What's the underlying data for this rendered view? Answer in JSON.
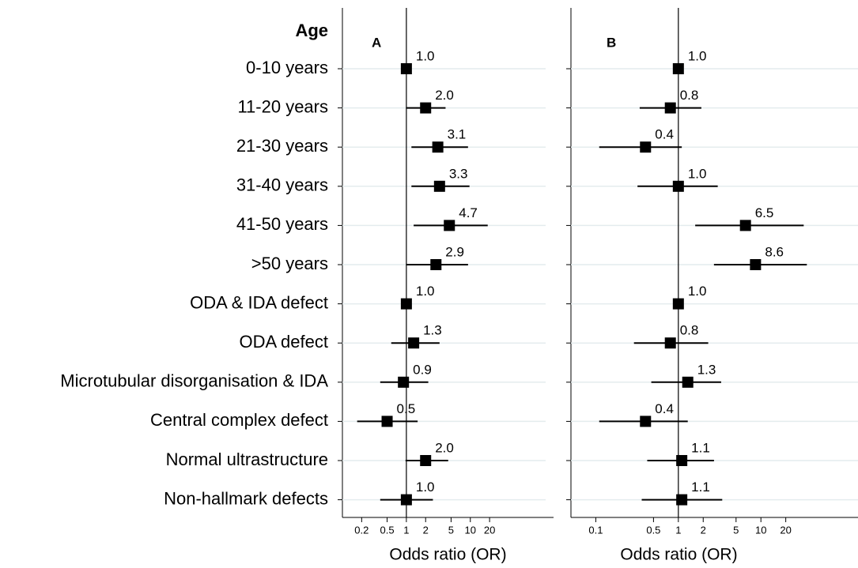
{
  "chart_data": [
    {
      "type": "forest",
      "title": "A",
      "row_header": "Age",
      "xlabel": "Odds ratio (OR)",
      "xscale": "log",
      "xlim": [
        0.1,
        200
      ],
      "xticks": [
        0.2,
        0.5,
        1,
        2,
        5,
        10,
        20
      ],
      "reference_line": 1,
      "grid": true,
      "color": "#000000",
      "categories": [
        "0-10 years",
        "11-20 years",
        "21-30 years",
        "31-40 years",
        "41-50 years",
        ">50 years",
        "ODA & IDA defect",
        "ODA defect",
        "Microtubular disorganisation & IDA",
        "Central complex defect",
        "Normal ultrastructure",
        "Non-hallmark defects"
      ],
      "values": [
        1,
        2,
        3.1,
        3.3,
        4.7,
        2.9,
        1,
        1.3,
        0.9,
        0.5,
        2,
        1
      ],
      "value_labels": [
        "1.0",
        "2.0",
        "3.1",
        "3.3",
        "4.7",
        "2.9",
        "1.0",
        "1.3",
        "0.9",
        "0.5",
        "2.0",
        "1.0"
      ],
      "lower": [
        null,
        1.0,
        1.2,
        1.2,
        1.3,
        1.0,
        null,
        0.58,
        0.39,
        0.17,
        0.97,
        0.39
      ],
      "upper": [
        null,
        4.1,
        9.2,
        9.7,
        18.7,
        9.2,
        null,
        3.3,
        2.2,
        1.5,
        4.5,
        2.6
      ]
    },
    {
      "type": "forest",
      "title": "B",
      "xlabel": "Odds ratio (OR)",
      "xscale": "log",
      "xlim": [
        0.05,
        150
      ],
      "xticks": [
        0.1,
        0.5,
        1,
        2,
        5,
        10,
        20
      ],
      "reference_line": 1,
      "grid": true,
      "color": "#000000",
      "values": [
        1,
        0.8,
        0.4,
        1,
        6.5,
        8.6,
        1,
        0.8,
        1.3,
        0.4,
        1.1,
        1.1
      ],
      "value_labels": [
        "1.0",
        "0.8",
        "0.4",
        "1.0",
        "6.5",
        "8.6",
        "1.0",
        "0.8",
        "1.3",
        "0.4",
        "1.1",
        "1.1"
      ],
      "lower": [
        null,
        0.34,
        0.11,
        0.32,
        1.6,
        2.7,
        null,
        0.29,
        0.47,
        0.11,
        0.42,
        0.36
      ],
      "upper": [
        null,
        1.9,
        1.1,
        3.0,
        33,
        36,
        null,
        2.3,
        3.3,
        1.3,
        2.7,
        3.4
      ]
    }
  ]
}
